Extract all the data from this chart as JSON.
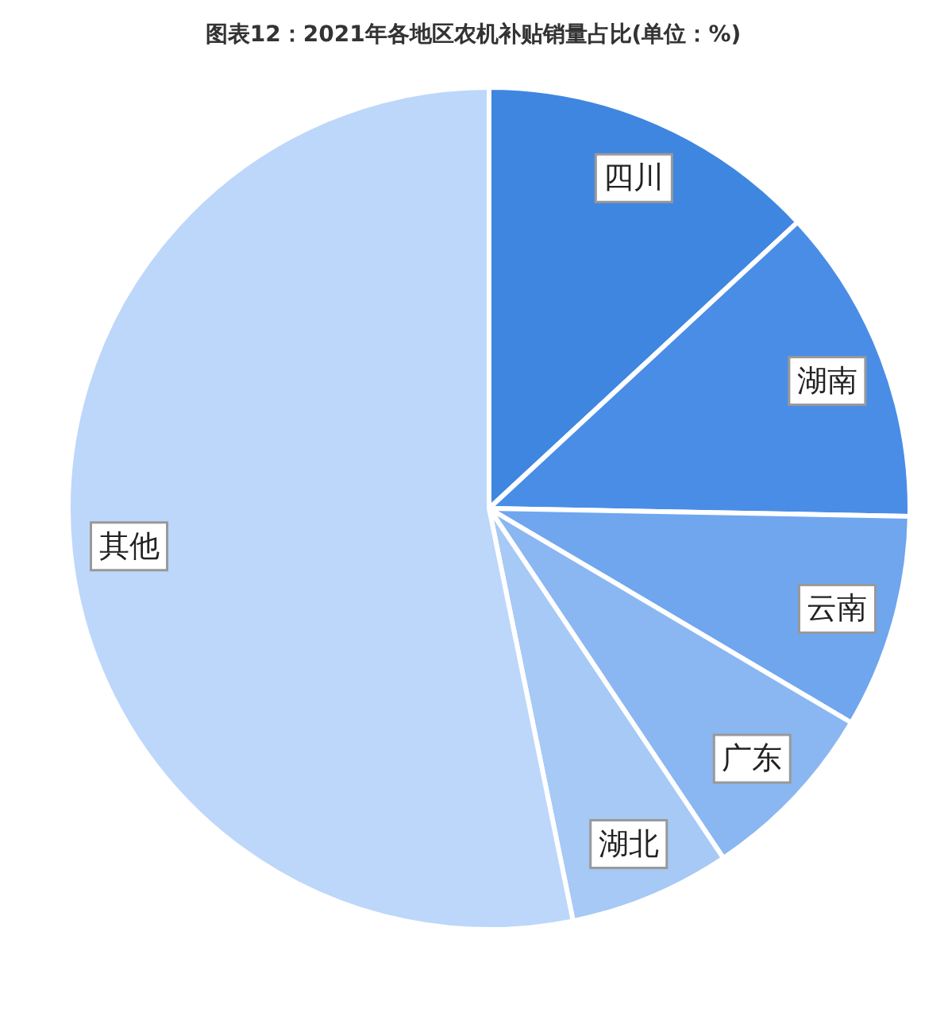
{
  "chart_data": {
    "type": "pie",
    "title": "图表12：2021年各地区农机补贴销量占比(单位：%)",
    "categories": [
      "四川",
      "湖南",
      "云南",
      "广东",
      "湖北",
      "其他"
    ],
    "values": [
      13.1,
      12.2,
      8.2,
      7.1,
      6.2,
      53.2
    ],
    "colors": [
      "#3f86e0",
      "#4a8de6",
      "#6fa6ee",
      "#8ab7f1",
      "#a6c9f5",
      "#bcd7fa"
    ],
    "legend": false
  }
}
